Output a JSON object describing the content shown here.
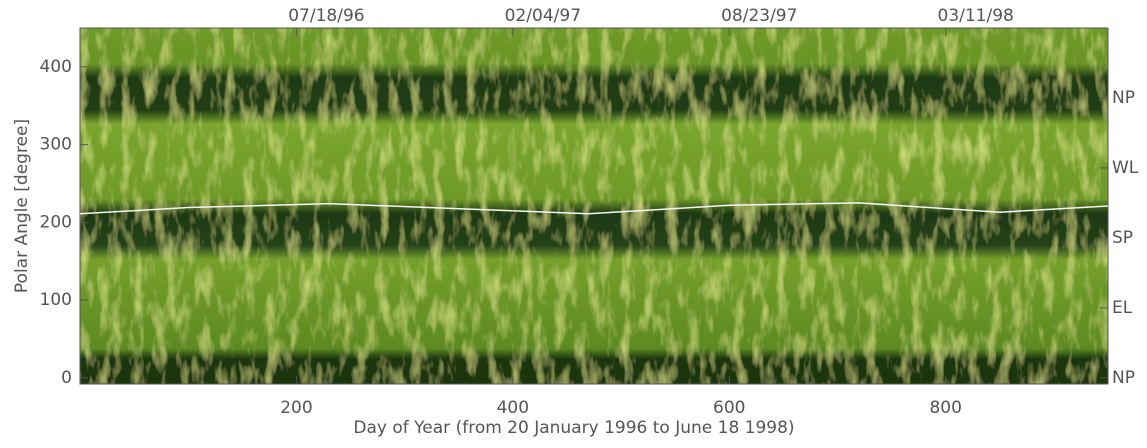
{
  "chart_data": {
    "type": "line",
    "xlabel": "Day of Year (from 20 January 1996 to June 18 1998)",
    "ylabel": "Polar Angle [degree]",
    "xlim": [
      0,
      950
    ],
    "xticks": [
      200,
      400,
      600,
      800
    ],
    "x2ticks": [
      {
        "value": 200,
        "label": "07/18/96"
      },
      {
        "value": 400,
        "label": "02/04/97"
      },
      {
        "value": 600,
        "label": "08/23/97"
      },
      {
        "value": 800,
        "label": "03/11/98"
      }
    ],
    "ylim": [
      -8,
      450
    ],
    "yticks": [
      0,
      100,
      200,
      300,
      400
    ],
    "y2lim": [
      -8,
      450
    ],
    "y2ticks": [
      {
        "value": 0,
        "label": "NP"
      },
      {
        "value": 90,
        "label": "EL"
      },
      {
        "value": 180,
        "label": "SP"
      },
      {
        "value": 270,
        "label": "WL"
      },
      {
        "value": 360,
        "label": "NP"
      }
    ],
    "series": [
      {
        "color": "#f4f4f4",
        "x": [
          0,
          100,
          230,
          360,
          470,
          600,
          720,
          850,
          950
        ],
        "values": [
          211,
          219,
          224,
          217,
          211,
          222,
          225,
          213,
          221
        ]
      }
    ]
  }
}
